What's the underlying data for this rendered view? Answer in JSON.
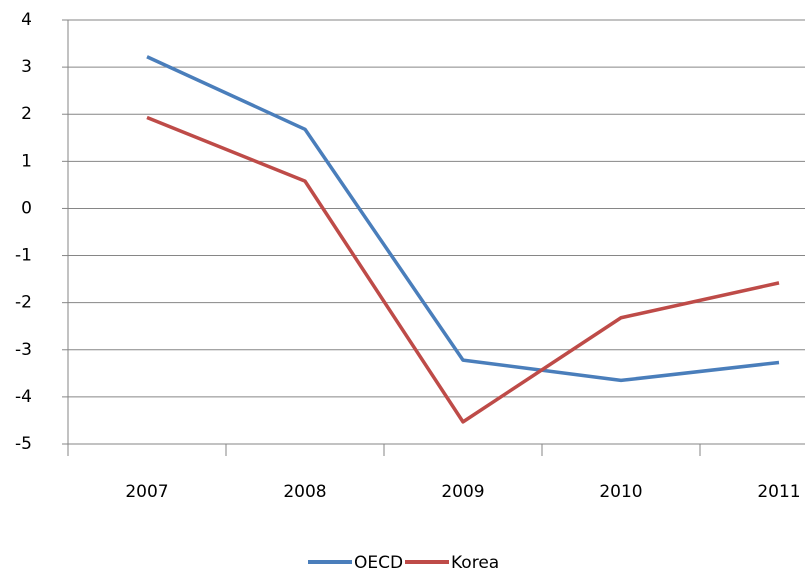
{
  "chart_data": {
    "type": "line",
    "categories": [
      "2007",
      "2008",
      "2009",
      "2010",
      "2011"
    ],
    "series": [
      {
        "name": "OECD",
        "color": "#4a7ebb",
        "values": [
          3.22,
          1.68,
          -3.22,
          -3.65,
          -3.27
        ]
      },
      {
        "name": "Korea",
        "color": "#be4b48",
        "values": [
          1.93,
          0.58,
          -4.53,
          -2.32,
          -1.58
        ]
      }
    ],
    "ylim": [
      -5,
      4
    ],
    "yticks": [
      -5,
      -4,
      -3,
      -2,
      -1,
      0,
      1,
      2,
      3,
      4
    ],
    "grid": true,
    "legend": "bottom"
  }
}
